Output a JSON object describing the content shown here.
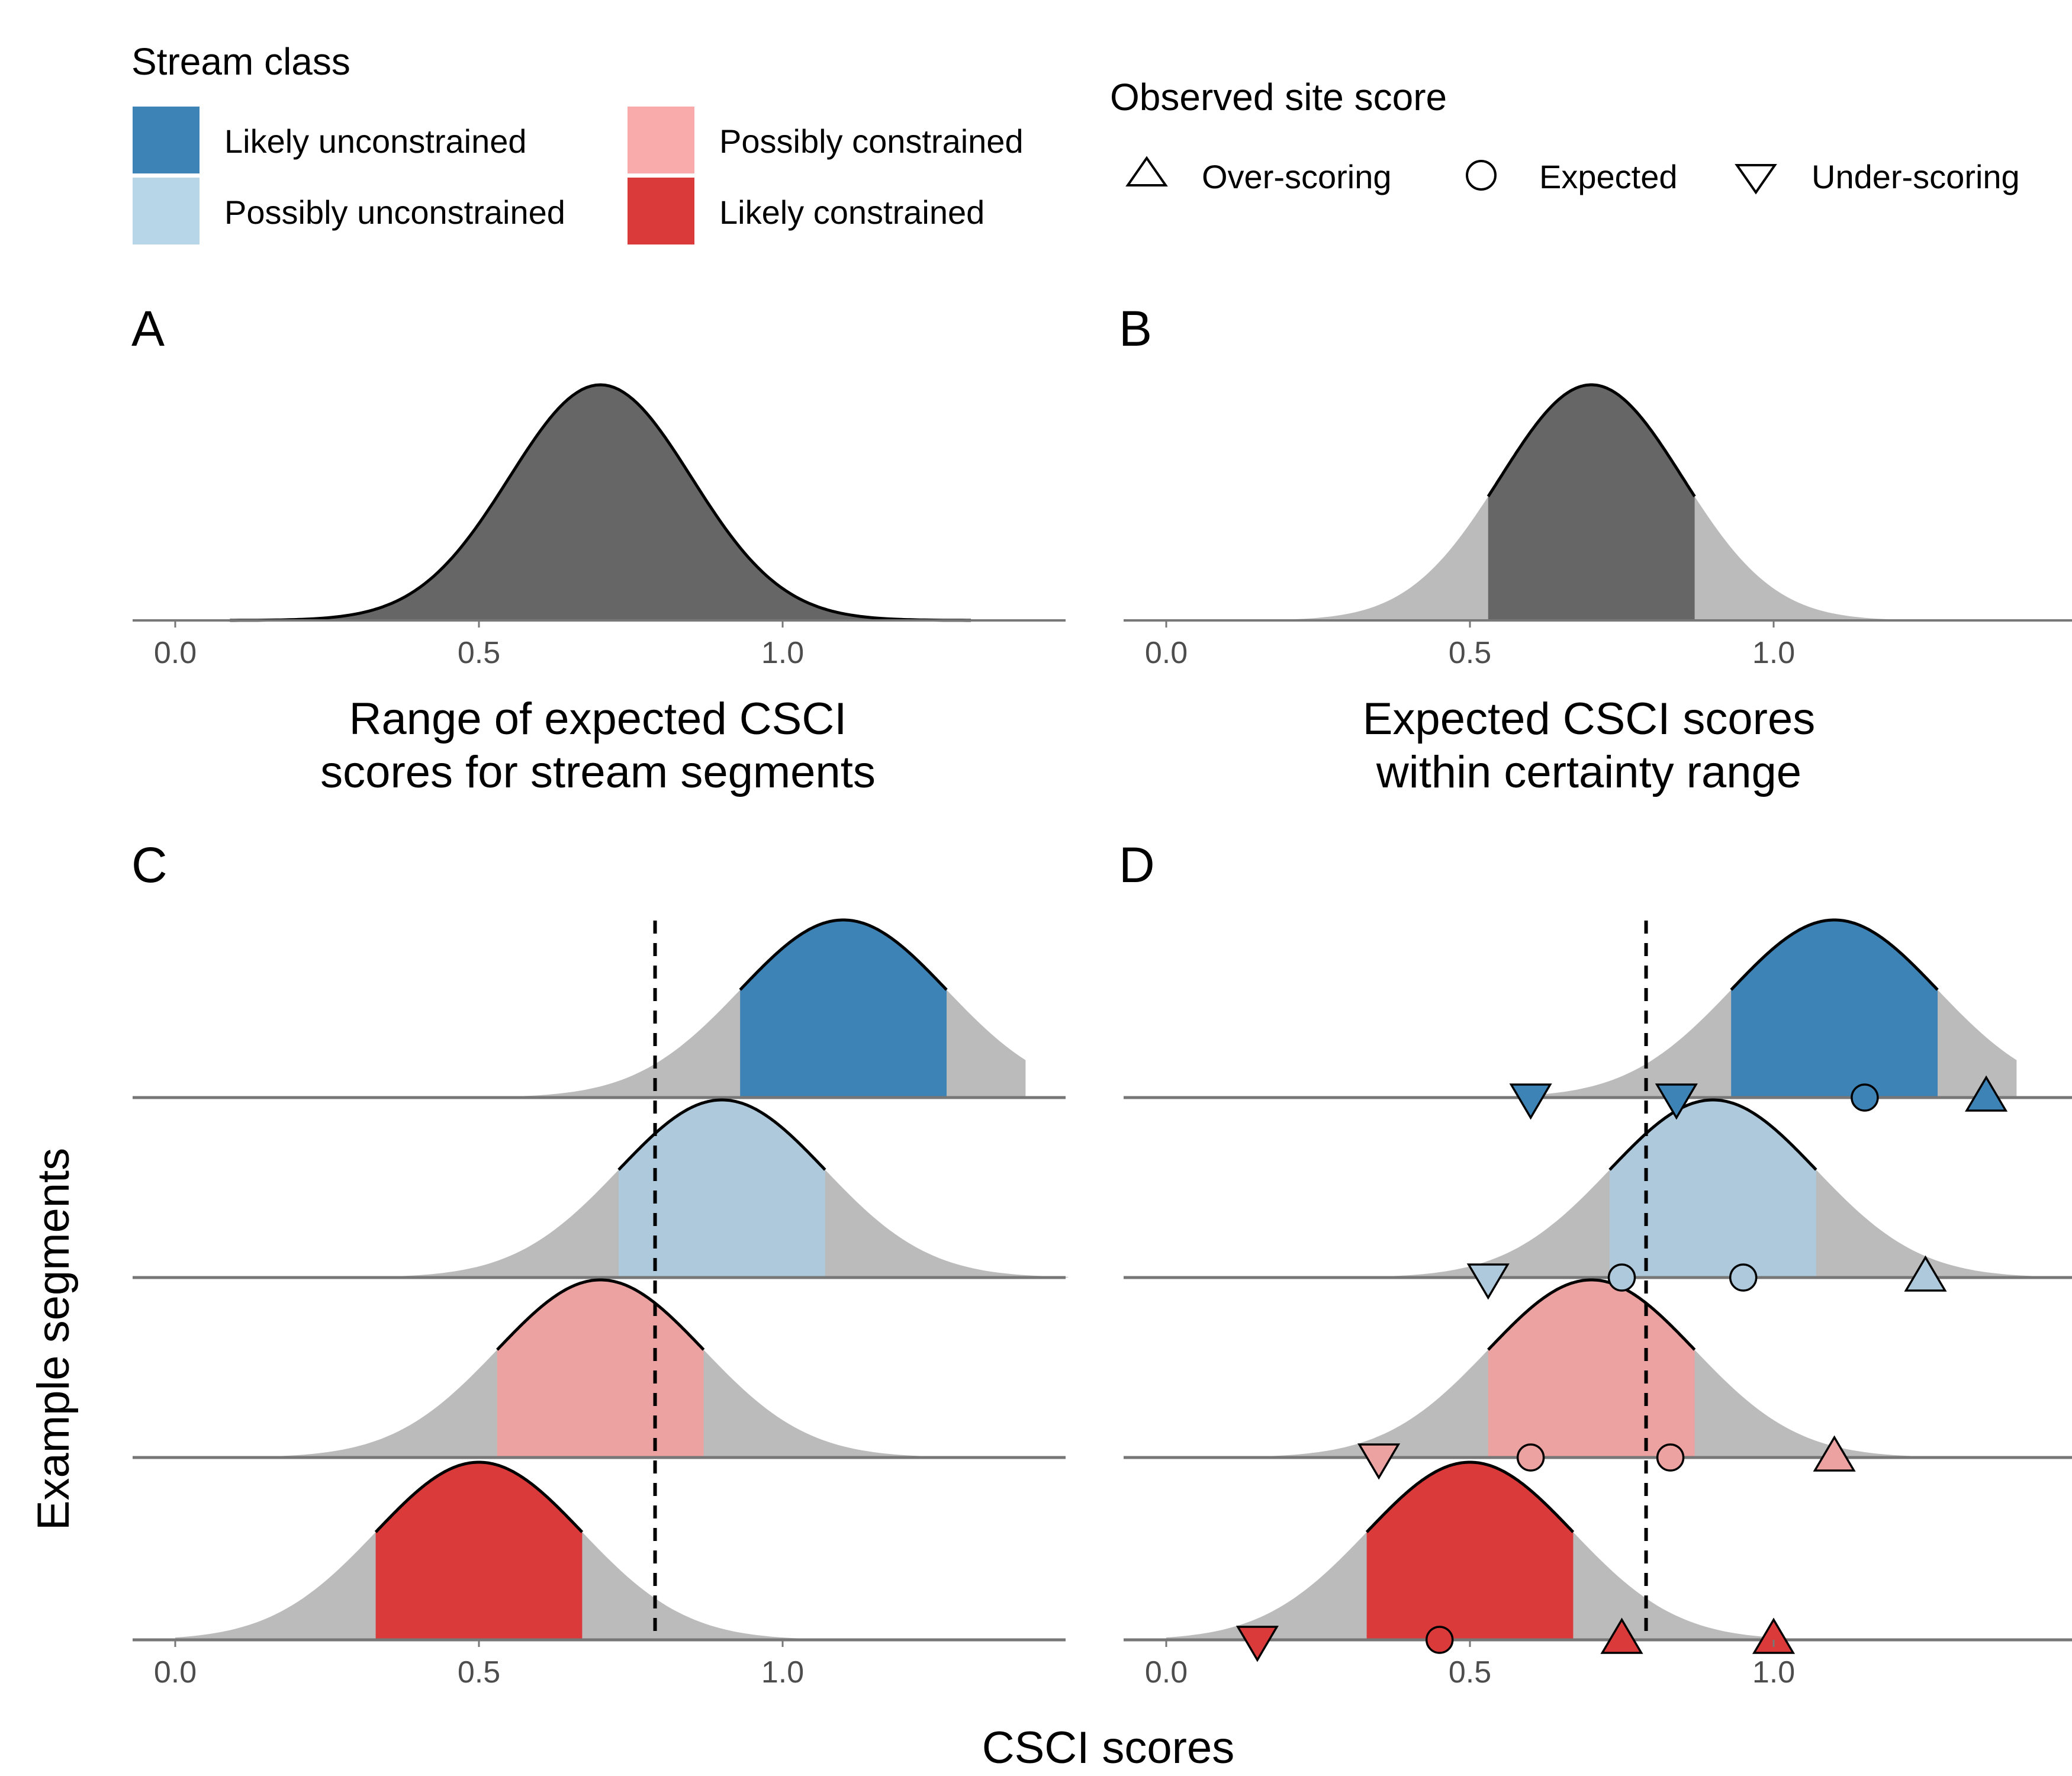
{
  "legend": {
    "stream_class": {
      "title": "Stream class",
      "items": [
        {
          "label": "Likely unconstrained",
          "color": "#3E83B6"
        },
        {
          "label": "Possibly unconstrained",
          "color": "#B7D6E8"
        },
        {
          "label": "Possibly constrained",
          "color": "#F9ABAB"
        },
        {
          "label": "Likely constrained",
          "color": "#DB3A3A"
        }
      ]
    },
    "observed": {
      "title": "Observed site score",
      "items": [
        {
          "label": "Over-scoring",
          "shape": "triangle-up-icon"
        },
        {
          "label": "Expected",
          "shape": "circle-icon"
        },
        {
          "label": "Under-scoring",
          "shape": "triangle-down-icon"
        }
      ]
    }
  },
  "panels": {
    "A": {
      "letter": "A",
      "xlabel_line1": "Range of expected CSCI",
      "xlabel_line2": "scores for stream segments"
    },
    "B": {
      "letter": "B",
      "xlabel_line1": "Expected CSCI scores",
      "xlabel_line2": "within certainty range"
    },
    "C": {
      "letter": "C"
    },
    "D": {
      "letter": "D"
    }
  },
  "shared_axis": {
    "xlabel": "CSCI scores",
    "ylabel": "Example segments",
    "ticks": [
      "0.0",
      "0.5",
      "1.0"
    ]
  },
  "colors": {
    "dark_gray": "#666666",
    "light_gray": "#BBBBBB",
    "axis_line": "#777777",
    "pink_fill": "#EDA2A2",
    "lightblue_fill": "#ADC9DB"
  },
  "chart_data": [
    {
      "type": "area",
      "panel": "A",
      "curve": {
        "mean": 0.7,
        "sd": 0.15,
        "x_range": [
          0.09,
          1.31
        ]
      },
      "xlim": [
        -0.07,
        1.47
      ],
      "ticks": [
        0.0,
        0.5,
        1.0
      ]
    },
    {
      "type": "area",
      "panel": "B",
      "curve": {
        "mean": 0.7,
        "sd": 0.15,
        "x_range": [
          0.09,
          1.31
        ]
      },
      "certainty_range": [
        0.53,
        0.87
      ],
      "xlim": [
        -0.07,
        1.47
      ],
      "ticks": [
        0.0,
        0.5,
        1.0
      ]
    },
    {
      "type": "area",
      "panel": "C",
      "threshold": 0.79,
      "xlim": [
        -0.07,
        1.47
      ],
      "ticks": [
        0.0,
        0.5,
        1.0
      ],
      "series": [
        {
          "name": "Likely unconstrained",
          "mean": 1.1,
          "sd": 0.17,
          "x_range": [
            0.0,
            1.4
          ],
          "certainty_range": [
            0.93,
            1.27
          ],
          "fill": "#3E83B6"
        },
        {
          "name": "Possibly unconstrained",
          "mean": 0.9,
          "sd": 0.17,
          "x_range": [
            0.0,
            1.47
          ],
          "certainty_range": [
            0.73,
            1.07
          ],
          "fill": "#ADC9DB"
        },
        {
          "name": "Possibly constrained",
          "mean": 0.7,
          "sd": 0.17,
          "x_range": [
            0.0,
            1.47
          ],
          "certainty_range": [
            0.53,
            0.87
          ],
          "fill": "#EDA2A2"
        },
        {
          "name": "Likely constrained",
          "mean": 0.5,
          "sd": 0.17,
          "x_range": [
            0.0,
            1.47
          ],
          "certainty_range": [
            0.33,
            0.67
          ],
          "fill": "#DB3A3A"
        }
      ]
    },
    {
      "type": "area",
      "panel": "D",
      "threshold": 0.79,
      "xlim": [
        -0.07,
        1.47
      ],
      "ticks": [
        0.0,
        0.5,
        1.0
      ],
      "series": [
        {
          "name": "Likely unconstrained",
          "mean": 1.1,
          "sd": 0.17,
          "x_range": [
            0.0,
            1.4
          ],
          "certainty_range": [
            0.93,
            1.27
          ],
          "fill": "#3E83B6",
          "points": [
            {
              "x": 0.6,
              "shape": "down"
            },
            {
              "x": 0.84,
              "shape": "down"
            },
            {
              "x": 1.15,
              "shape": "circle"
            },
            {
              "x": 1.35,
              "shape": "up"
            }
          ]
        },
        {
          "name": "Possibly unconstrained",
          "mean": 0.9,
          "sd": 0.17,
          "x_range": [
            0.0,
            1.47
          ],
          "certainty_range": [
            0.73,
            1.07
          ],
          "fill": "#ADC9DB",
          "points": [
            {
              "x": 0.53,
              "shape": "down"
            },
            {
              "x": 0.75,
              "shape": "circle"
            },
            {
              "x": 0.95,
              "shape": "circle"
            },
            {
              "x": 1.25,
              "shape": "up"
            }
          ]
        },
        {
          "name": "Possibly constrained",
          "mean": 0.7,
          "sd": 0.17,
          "x_range": [
            0.0,
            1.47
          ],
          "certainty_range": [
            0.53,
            0.87
          ],
          "fill": "#EDA2A2",
          "points": [
            {
              "x": 0.35,
              "shape": "down"
            },
            {
              "x": 0.6,
              "shape": "circle"
            },
            {
              "x": 0.83,
              "shape": "circle"
            },
            {
              "x": 1.1,
              "shape": "up"
            }
          ]
        },
        {
          "name": "Likely constrained",
          "mean": 0.5,
          "sd": 0.17,
          "x_range": [
            0.0,
            1.47
          ],
          "certainty_range": [
            0.33,
            0.67
          ],
          "fill": "#DB3A3A",
          "points": [
            {
              "x": 0.15,
              "shape": "down"
            },
            {
              "x": 0.45,
              "shape": "circle"
            },
            {
              "x": 0.75,
              "shape": "up"
            },
            {
              "x": 1.0,
              "shape": "up"
            }
          ]
        }
      ]
    }
  ]
}
